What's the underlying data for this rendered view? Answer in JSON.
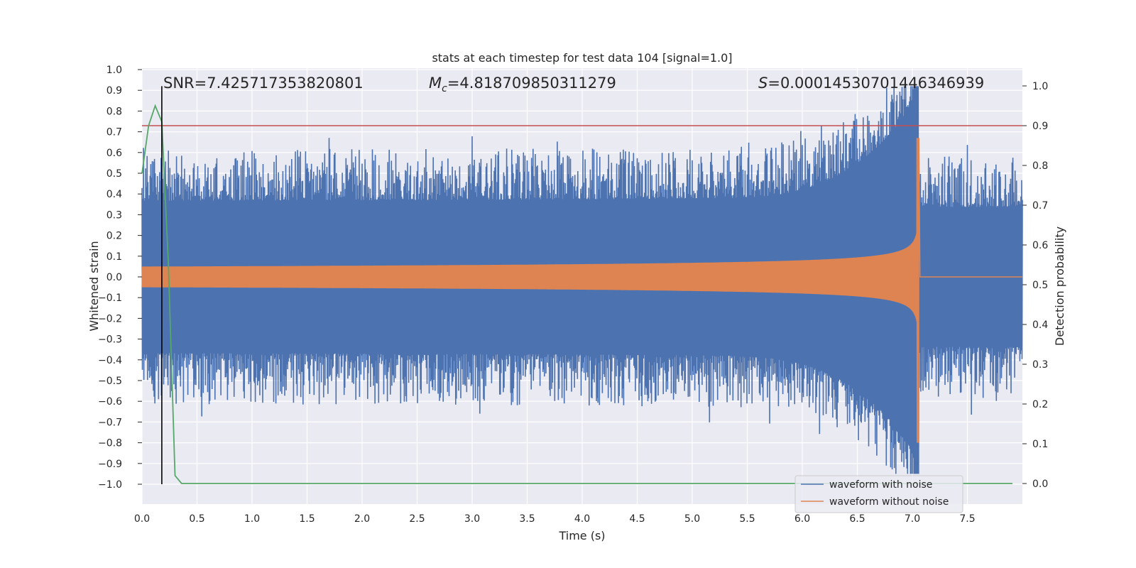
{
  "chart_data": {
    "type": "line",
    "title": "stats at each timestep for test data 104 [signal=1.0]",
    "xlabel": "Time (s)",
    "ylabel": "Whitened strain",
    "y2label": "Detection probability",
    "xlim": [
      0.0,
      8.0
    ],
    "ylim": [
      -1.1,
      1.05
    ],
    "y2lim": [
      -0.05,
      1.05
    ],
    "xticks": [
      "0.0",
      "0.5",
      "1.0",
      "1.5",
      "2.0",
      "2.5",
      "3.0",
      "3.5",
      "4.0",
      "4.5",
      "5.0",
      "5.5",
      "6.0",
      "6.5",
      "7.0",
      "7.5"
    ],
    "yticks": [
      "1.0",
      "0.9",
      "0.8",
      "0.7",
      "0.6",
      "0.5",
      "0.4",
      "0.3",
      "0.2",
      "0.1",
      "0.0",
      "−0.1",
      "−0.2",
      "−0.3",
      "−0.4",
      "−0.5",
      "−0.6",
      "−0.7",
      "−0.8",
      "−0.9",
      "−1.0"
    ],
    "y2ticks": [
      "1.0",
      "0.9",
      "0.8",
      "0.7",
      "0.6",
      "0.5",
      "0.4",
      "0.3",
      "0.2",
      "0.1",
      "0.0"
    ],
    "annotations": {
      "snr_label": "SNR=7.425717353820801",
      "mc_symbol": "M",
      "mc_subscript": "c",
      "mc_value": "=4.818709850311279",
      "s_symbol": "S",
      "s_value": "=0.00014530701446346939"
    },
    "threshold": {
      "value": 0.9,
      "axis": "right",
      "color": "#c44e52"
    },
    "marker_line": {
      "x": 0.18,
      "y_from": -1.0,
      "y_to": 0.92,
      "color": "#000000"
    },
    "series": [
      {
        "name": "waveform with noise",
        "color": "#4c72b0",
        "kind": "noisy_strain",
        "typical_amplitude": 0.45,
        "merger_time": 7.06,
        "peak_max": 0.92,
        "peak_min": -0.95
      },
      {
        "name": "waveform without noise",
        "color": "#dd8452",
        "kind": "chirp",
        "start_amplitude": 0.05,
        "merger_time": 7.06,
        "peak_max": 0.67,
        "peak_min": -0.8,
        "ringdown_level": 0.0
      },
      {
        "name": "detection probability",
        "color": "#55a868",
        "axis": "right",
        "x": [
          0.0,
          0.06,
          0.12,
          0.18,
          0.24,
          0.3,
          0.36,
          8.0
        ],
        "y": [
          0.78,
          0.9,
          0.95,
          0.91,
          0.55,
          0.02,
          0.0,
          0.0
        ]
      }
    ],
    "legend": {
      "position": "lower-right",
      "entries": [
        "waveform with noise",
        "waveform without noise"
      ]
    }
  }
}
